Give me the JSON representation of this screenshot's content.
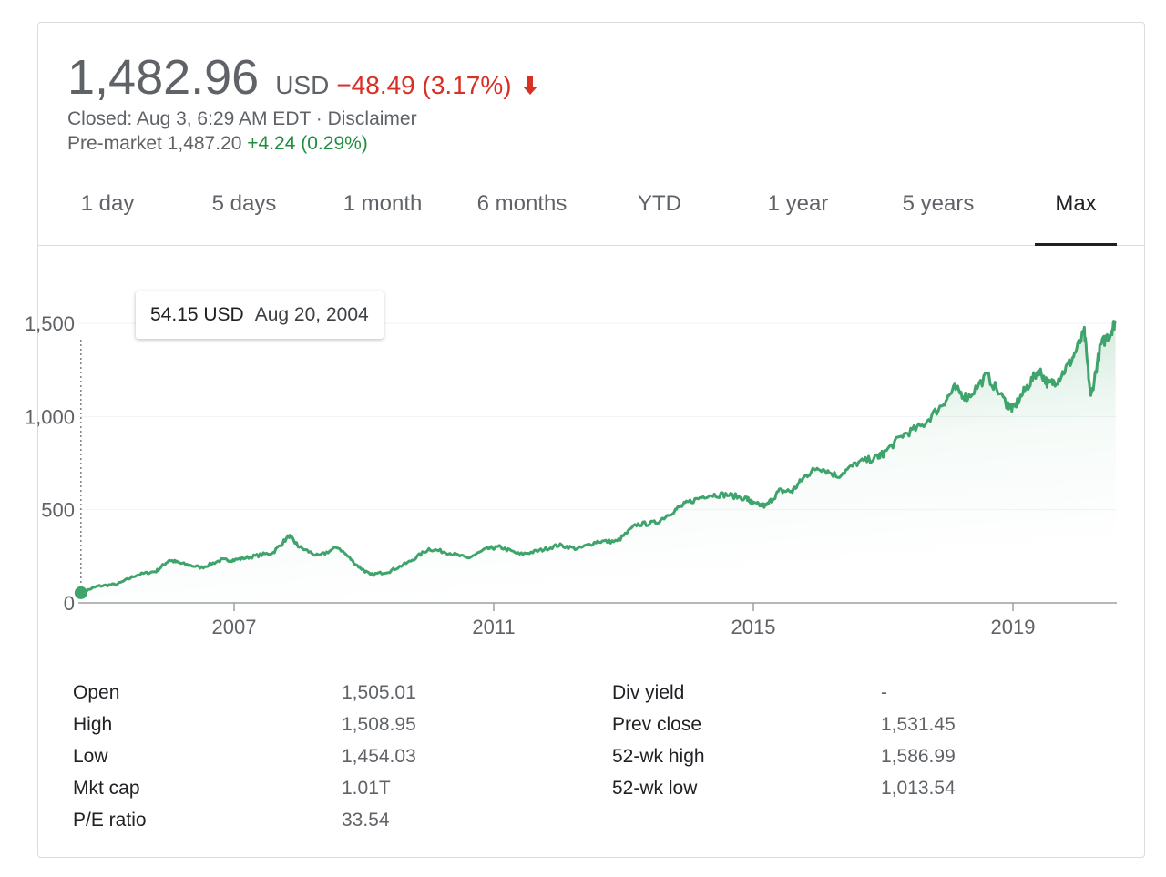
{
  "quote": {
    "price": "1,482.96",
    "currency": "USD",
    "change": "−48.49 (3.17%)",
    "change_color": "#d93025",
    "closed_text": "Closed: Aug 3, 6:29 AM EDT · Disclaimer",
    "premarket_label": "Pre-market 1,487.20",
    "premarket_change": "+4.24 (0.29%)",
    "premarket_color": "#1e8e3e",
    "direction_icon": "arrow-down-icon"
  },
  "tabs": [
    {
      "label": "1 day",
      "active": false
    },
    {
      "label": "5 days",
      "active": false
    },
    {
      "label": "1 month",
      "active": false
    },
    {
      "label": "6 months",
      "active": false
    },
    {
      "label": "YTD",
      "active": false
    },
    {
      "label": "1 year",
      "active": false
    },
    {
      "label": "5 years",
      "active": false
    },
    {
      "label": "Max",
      "active": true
    }
  ],
  "tooltip": {
    "value": "54.15 USD",
    "date": "Aug 20, 2004"
  },
  "chart_data": {
    "type": "area",
    "line_color": "#3ea46b",
    "x_ticks": [
      "2007",
      "2011",
      "2015",
      "2019"
    ],
    "y_ticks": [
      "0",
      "500",
      "1,000",
      "1,500"
    ],
    "xlim": [
      2004.6,
      2020.6
    ],
    "ylim": [
      0,
      1500
    ],
    "grid": true,
    "series": [
      {
        "x": [
          2004.64,
          2004.9,
          2005.2,
          2005.5,
          2005.8,
          2006.0,
          2006.2,
          2006.5,
          2006.8,
          2007.0,
          2007.3,
          2007.6,
          2007.85,
          2008.0,
          2008.3,
          2008.6,
          2008.9,
          2009.1,
          2009.4,
          2009.7,
          2010.0,
          2010.3,
          2010.6,
          2010.9,
          2011.1,
          2011.4,
          2011.7,
          2012.0,
          2012.3,
          2012.6,
          2012.9,
          2013.2,
          2013.5,
          2013.8,
          2014.0,
          2014.3,
          2014.6,
          2014.9,
          2015.0,
          2015.2,
          2015.4,
          2015.6,
          2015.8,
          2016.0,
          2016.3,
          2016.6,
          2016.9,
          2017.0,
          2017.3,
          2017.6,
          2017.9,
          2018.1,
          2018.3,
          2018.6,
          2018.9,
          2019.0,
          2019.2,
          2019.4,
          2019.55,
          2019.7,
          2019.9,
          2020.1,
          2020.2,
          2020.35,
          2020.5,
          2020.58
        ],
        "y": [
          54.15,
          90,
          100,
          150,
          170,
          230,
          210,
          190,
          230,
          230,
          250,
          270,
          360,
          300,
          250,
          300,
          200,
          150,
          170,
          220,
          290,
          270,
          240,
          290,
          300,
          260,
          280,
          310,
          290,
          330,
          330,
          420,
          430,
          500,
          540,
          580,
          580,
          560,
          530,
          520,
          600,
          600,
          680,
          730,
          680,
          750,
          780,
          800,
          900,
          950,
          1060,
          1150,
          1100,
          1220,
          1070,
          1040,
          1150,
          1250,
          1170,
          1200,
          1300,
          1450,
          1100,
          1380,
          1450,
          1510
        ]
      }
    ]
  },
  "stats": {
    "left": [
      {
        "label": "Open",
        "value": "1,505.01"
      },
      {
        "label": "High",
        "value": "1,508.95"
      },
      {
        "label": "Low",
        "value": "1,454.03"
      },
      {
        "label": "Mkt cap",
        "value": "1.01T"
      },
      {
        "label": "P/E ratio",
        "value": "33.54"
      }
    ],
    "right": [
      {
        "label": "Div yield",
        "value": "-"
      },
      {
        "label": "Prev close",
        "value": "1,531.45"
      },
      {
        "label": "52-wk high",
        "value": "1,586.99"
      },
      {
        "label": "52-wk low",
        "value": "1,013.54"
      }
    ]
  }
}
